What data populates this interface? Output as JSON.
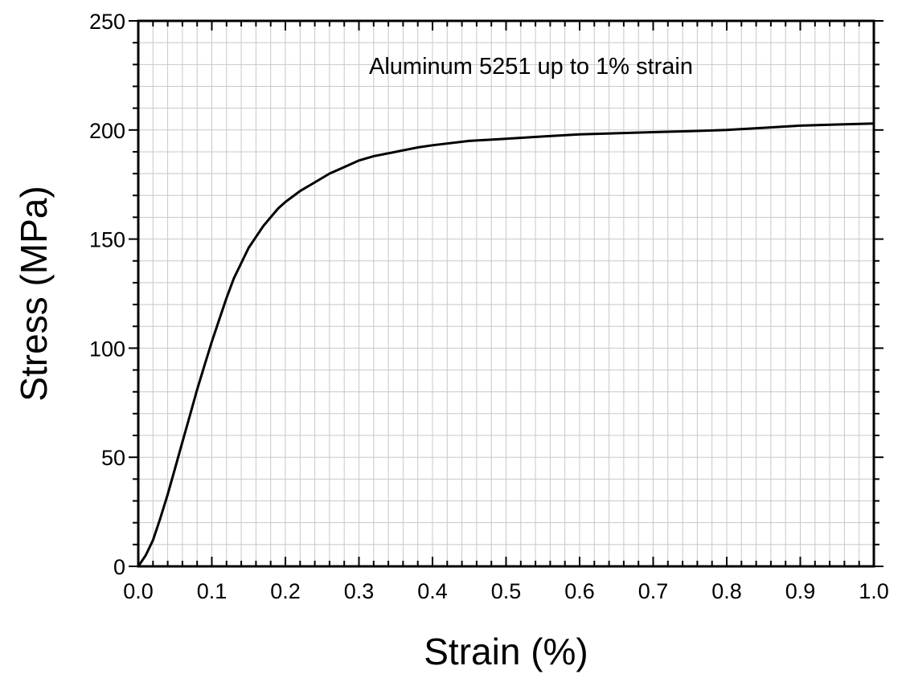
{
  "chart_data": {
    "type": "line",
    "title": "",
    "xlabel": "Strain (%)",
    "ylabel": "Stress (MPa)",
    "xlim": [
      0,
      1.0
    ],
    "ylim": [
      0,
      250
    ],
    "xticks": [
      "0.0",
      "0.1",
      "0.2",
      "0.3",
      "0.4",
      "0.5",
      "0.6",
      "0.7",
      "0.8",
      "0.9",
      "1.0"
    ],
    "yticks": [
      "0",
      "50",
      "100",
      "150",
      "200",
      "250"
    ],
    "grid": true,
    "annotation": "Aluminum 5251 up to 1% strain",
    "line_color": "#000000",
    "grid_color": "#c8c8c8",
    "series": [
      {
        "x": [
          0,
          0.01,
          0.02,
          0.03,
          0.04,
          0.05,
          0.06,
          0.07,
          0.08,
          0.09,
          0.1,
          0.11,
          0.12,
          0.13,
          0.14,
          0.15,
          0.16,
          0.17,
          0.18,
          0.19,
          0.2,
          0.22,
          0.24,
          0.26,
          0.28,
          0.3,
          0.32,
          0.35,
          0.38,
          0.4,
          0.45,
          0.5,
          0.55,
          0.6,
          0.65,
          0.7,
          0.75,
          0.8,
          0.85,
          0.9,
          0.95,
          1.0
        ],
        "y": [
          0,
          5,
          12,
          22,
          33,
          45,
          57,
          69,
          81,
          92,
          103,
          113,
          123,
          132,
          139,
          146,
          151,
          156,
          160,
          164,
          167,
          172,
          176,
          180,
          183,
          186,
          188,
          190,
          192,
          193,
          195,
          196,
          197,
          198,
          198.5,
          199,
          199.5,
          200,
          201,
          202,
          202.5,
          203
        ]
      }
    ]
  }
}
